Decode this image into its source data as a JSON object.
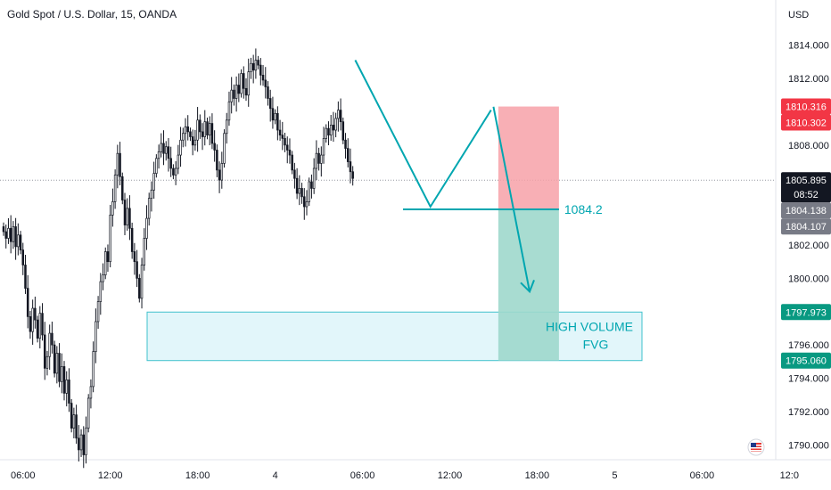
{
  "header": {
    "title": "Gold Spot / U.S. Dollar, 15, OANDA",
    "currency": "USD"
  },
  "chart_data": {
    "type": "candlestick",
    "y_range": [
      1789.0,
      1815.0
    ],
    "y_ticks": [
      "1814.000",
      "1812.000",
      "1810.000",
      "1808.000",
      "1806.000",
      "1804.000",
      "1802.000",
      "1800.000",
      "1798.000",
      "1796.000",
      "1794.000",
      "1792.000",
      "1790.000"
    ],
    "x_ticks": [
      {
        "label": "06:00",
        "bar": 8
      },
      {
        "label": "12:00",
        "bar": 44
      },
      {
        "label": "18:00",
        "bar": 80
      },
      {
        "label": "4",
        "bar": 112
      },
      {
        "label": "06:00",
        "bar": 148
      },
      {
        "label": "12:00",
        "bar": 184
      },
      {
        "label": "18:00",
        "bar": 220
      },
      {
        "label": "5",
        "bar": 252
      },
      {
        "label": "06:00",
        "bar": 288
      },
      {
        "label": "12:0",
        "bar": 324
      }
    ],
    "closes": [
      1802.8,
      1802.4,
      1803.0,
      1802.2,
      1803.1,
      1801.9,
      1802.6,
      1801.7,
      1800.8,
      1799.4,
      1797.7,
      1796.8,
      1798.2,
      1797.5,
      1796.4,
      1797.9,
      1796.6,
      1794.6,
      1795.3,
      1796.7,
      1796.0,
      1794.3,
      1795.5,
      1793.8,
      1794.7,
      1793.1,
      1793.9,
      1792.5,
      1791.0,
      1791.8,
      1790.4,
      1789.7,
      1790.6,
      1789.4,
      1791.0,
      1792.8,
      1793.5,
      1795.6,
      1797.4,
      1798.6,
      1799.8,
      1800.2,
      1801.6,
      1801.0,
      1803.8,
      1804.6,
      1806.2,
      1807.5,
      1806.1,
      1804.7,
      1803.2,
      1804.2,
      1803.0,
      1801.6,
      1801.0,
      1800.0,
      1798.8,
      1800.8,
      1802.4,
      1803.6,
      1804.8,
      1805.3,
      1806.3,
      1807.2,
      1807.6,
      1808.1,
      1807.5,
      1807.9,
      1807.2,
      1806.6,
      1806.2,
      1806.6,
      1807.4,
      1808.3,
      1808.7,
      1809.1,
      1808.8,
      1808.5,
      1808.0,
      1808.3,
      1809.5,
      1808.8,
      1808.5,
      1809.4,
      1808.6,
      1809.3,
      1808.1,
      1807.7,
      1806.5,
      1805.9,
      1806.9,
      1808.7,
      1809.5,
      1810.6,
      1811.3,
      1810.8,
      1811.6,
      1811.1,
      1812.3,
      1811.4,
      1811.0,
      1812.4,
      1812.9,
      1812.5,
      1813.1,
      1812.8,
      1812.2,
      1811.9,
      1811.5,
      1810.8,
      1810.2,
      1809.5,
      1809.9,
      1808.9,
      1808.6,
      1808.4,
      1808.0,
      1807.7,
      1807.4,
      1806.5,
      1806.0,
      1805.1,
      1805.4,
      1804.9,
      1804.3,
      1804.6,
      1805.8,
      1805.4,
      1806.6,
      1807.5,
      1806.9,
      1807.4,
      1808.4,
      1809.0,
      1808.6,
      1809.2,
      1808.9,
      1809.6,
      1810.1,
      1809.4,
      1808.3,
      1807.8,
      1807.0,
      1806.4,
      1806.0
    ],
    "lines": {
      "current_price": 1805.895,
      "fvg_top": 1797.973,
      "fvg_bottom": 1795.06,
      "neckline": 1804.138
    },
    "price_badges": [
      {
        "label": "1810.316",
        "price": 1810.316,
        "bg": "#f23645",
        "fg": "#ffffff"
      },
      {
        "label": "1810.302",
        "price": 1810.302,
        "bg": "#f23645",
        "fg": "#ffffff"
      },
      {
        "label": "1805.895",
        "price": 1805.895,
        "bg": "#131722",
        "fg": "#ffffff",
        "sub": "08:52"
      },
      {
        "label": "1804.138",
        "price": 1804.138,
        "bg": "#787b86",
        "fg": "#ffffff"
      },
      {
        "label": "1804.107",
        "price": 1804.107,
        "bg": "#787b86",
        "fg": "#ffffff"
      },
      {
        "label": "1797.973",
        "price": 1797.973,
        "bg": "#089981",
        "fg": "#ffffff"
      },
      {
        "label": "1795.060",
        "price": 1795.06,
        "bg": "#089981",
        "fg": "#ffffff"
      }
    ],
    "annotations": {
      "level_label": "1084.2",
      "fvg_label_1": "HIGH VOLUME",
      "fvg_label_2": "FVG"
    },
    "position": {
      "entry": 1804.138,
      "stop": 1810.316,
      "target": 1795.06,
      "start_bar": 204,
      "end_bar": 229
    },
    "colors": {
      "candle": "#131722",
      "accent": "#00a6b0",
      "stop_zone": "#f7a1a8",
      "target_zone": "#9fd8cc",
      "fvg_fill": "#e2f6fa",
      "fvg_border": "#3fc1cc",
      "grid_line": "#9598a1"
    }
  }
}
